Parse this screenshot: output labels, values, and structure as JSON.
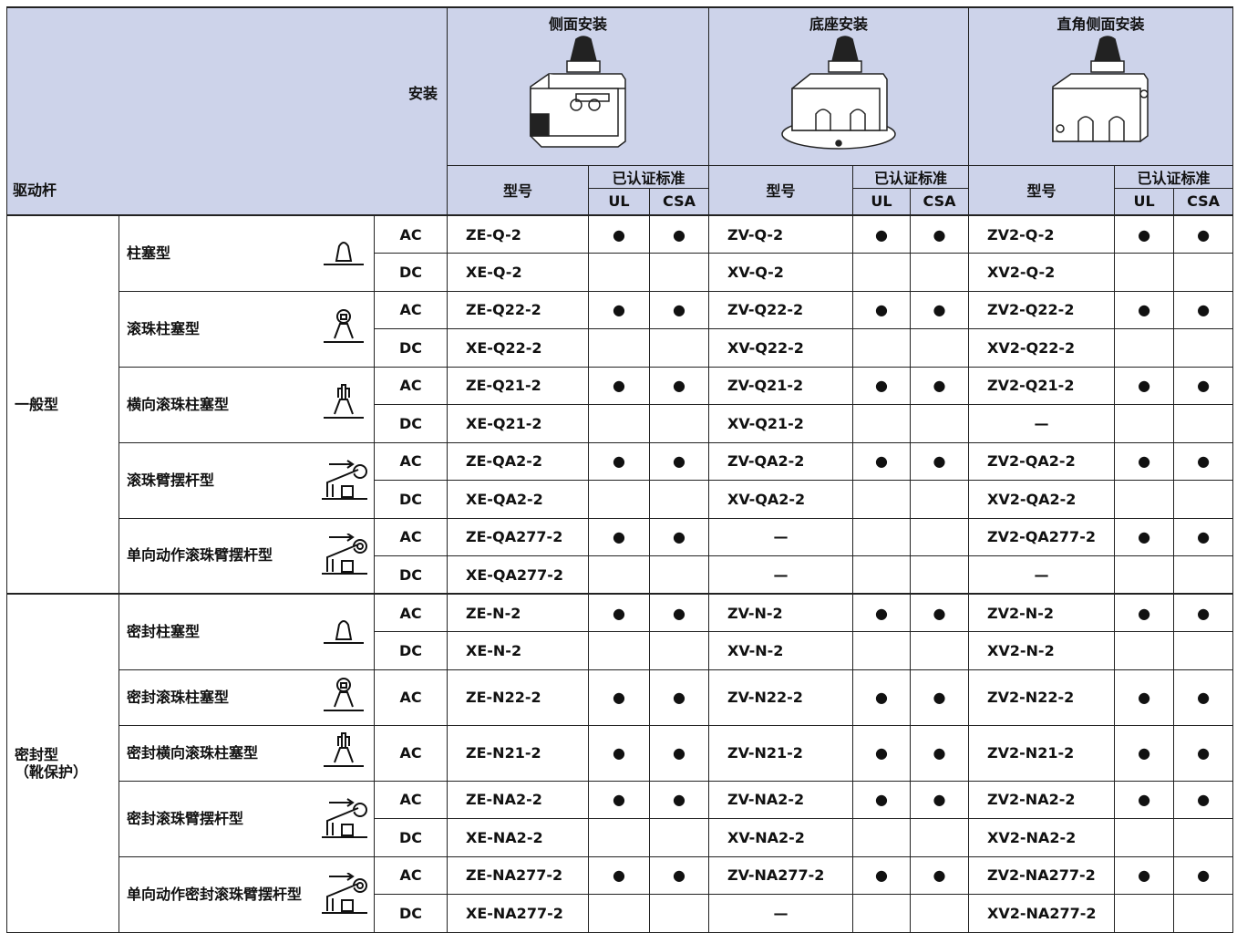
{
  "header": {
    "mounting_label": "安装",
    "actuator_label": "驱动杆",
    "groups": [
      {
        "title": "侧面安装",
        "model": "型号",
        "cert": "已认证标准",
        "ul": "UL",
        "csa": "CSA"
      },
      {
        "title": "底座安装",
        "model": "型号",
        "cert": "已认证标准",
        "ul": "UL",
        "csa": "CSA"
      },
      {
        "title": "直角侧面安装",
        "model": "型号",
        "cert": "已认证标准",
        "ul": "UL",
        "csa": "CSA"
      }
    ]
  },
  "body": {
    "groups": [
      {
        "label": [
          "一般型"
        ],
        "actuators": [
          {
            "name": "柱塞型",
            "rows": [
              {
                "current": "AC",
                "cells": [
                  "ZE-Q-2",
                  "●",
                  "●",
                  "ZV-Q-2",
                  "●",
                  "●",
                  "ZV2-Q-2",
                  "●",
                  "●"
                ]
              },
              {
                "current": "DC",
                "cells": [
                  "XE-Q-2",
                  null,
                  null,
                  "XV-Q-2",
                  null,
                  null,
                  "XV2-Q-2",
                  null,
                  null
                ]
              }
            ]
          },
          {
            "name": "滚珠柱塞型",
            "rows": [
              {
                "current": "AC",
                "cells": [
                  "ZE-Q22-2",
                  "●",
                  "●",
                  "ZV-Q22-2",
                  "●",
                  "●",
                  "ZV2-Q22-2",
                  "●",
                  "●"
                ]
              },
              {
                "current": "DC",
                "cells": [
                  "XE-Q22-2",
                  null,
                  null,
                  "XV-Q22-2",
                  null,
                  null,
                  "XV2-Q22-2",
                  null,
                  null
                ]
              }
            ]
          },
          {
            "name": "横向滚珠柱塞型",
            "rows": [
              {
                "current": "AC",
                "cells": [
                  "ZE-Q21-2",
                  "●",
                  "●",
                  "ZV-Q21-2",
                  "●",
                  "●",
                  "ZV2-Q21-2",
                  "●",
                  "●"
                ]
              },
              {
                "current": "DC",
                "cells": [
                  "XE-Q21-2",
                  null,
                  null,
                  "XV-Q21-2",
                  null,
                  null,
                  "—",
                  null,
                  null
                ]
              }
            ]
          },
          {
            "name": "滚珠臂摆杆型",
            "rows": [
              {
                "current": "AC",
                "cells": [
                  "ZE-QA2-2",
                  "●",
                  "●",
                  "ZV-QA2-2",
                  "●",
                  "●",
                  "ZV2-QA2-2",
                  "●",
                  "●"
                ]
              },
              {
                "current": "DC",
                "cells": [
                  "XE-QA2-2",
                  null,
                  null,
                  "XV-QA2-2",
                  null,
                  null,
                  "XV2-QA2-2",
                  null,
                  null
                ]
              }
            ]
          },
          {
            "name": "单向动作滚珠臂摆杆型",
            "rows": [
              {
                "current": "AC",
                "cells": [
                  "ZE-QA277-2",
                  "●",
                  "●",
                  "—",
                  null,
                  null,
                  "ZV2-QA277-2",
                  "●",
                  "●"
                ]
              },
              {
                "current": "DC",
                "cells": [
                  "XE-QA277-2",
                  null,
                  null,
                  "—",
                  null,
                  null,
                  "—",
                  null,
                  null
                ]
              }
            ]
          }
        ]
      },
      {
        "label": [
          "密封型",
          "（靴保护）"
        ],
        "actuators": [
          {
            "name": "密封柱塞型",
            "rows": [
              {
                "current": "AC",
                "cells": [
                  "ZE-N-2",
                  "●",
                  "●",
                  "ZV-N-2",
                  "●",
                  "●",
                  "ZV2-N-2",
                  "●",
                  "●"
                ]
              },
              {
                "current": "DC",
                "cells": [
                  "XE-N-2",
                  null,
                  null,
                  "XV-N-2",
                  null,
                  null,
                  "XV2-N-2",
                  null,
                  null
                ]
              }
            ]
          },
          {
            "name": "密封滚珠柱塞型",
            "rows": [
              {
                "current": "AC",
                "cells": [
                  "ZE-N22-2",
                  "●",
                  "●",
                  "ZV-N22-2",
                  "●",
                  "●",
                  "ZV2-N22-2",
                  "●",
                  "●"
                ]
              }
            ]
          },
          {
            "name": "密封横向滚珠柱塞型",
            "rows": [
              {
                "current": "AC",
                "cells": [
                  "ZE-N21-2",
                  "●",
                  "●",
                  "ZV-N21-2",
                  "●",
                  "●",
                  "ZV2-N21-2",
                  "●",
                  "●"
                ]
              }
            ]
          },
          {
            "name": "密封滚珠臂摆杆型",
            "rows": [
              {
                "current": "AC",
                "cells": [
                  "ZE-NA2-2",
                  "●",
                  "●",
                  "ZV-NA2-2",
                  "●",
                  "●",
                  "ZV2-NA2-2",
                  "●",
                  "●"
                ]
              },
              {
                "current": "DC",
                "cells": [
                  "XE-NA2-2",
                  null,
                  null,
                  "XV-NA2-2",
                  null,
                  null,
                  "XV2-NA2-2",
                  null,
                  null
                ]
              }
            ]
          },
          {
            "name": "单向动作密封滚珠臂摆杆型",
            "rows": [
              {
                "current": "AC",
                "cells": [
                  "ZE-NA277-2",
                  "●",
                  "●",
                  "ZV-NA277-2",
                  "●",
                  "●",
                  "ZV2-NA277-2",
                  "●",
                  "●"
                ]
              },
              {
                "current": "DC",
                "cells": [
                  "XE-NA277-2",
                  null,
                  null,
                  "—",
                  null,
                  null,
                  "XV2-NA277-2",
                  null,
                  null
                ]
              }
            ]
          }
        ]
      }
    ]
  }
}
